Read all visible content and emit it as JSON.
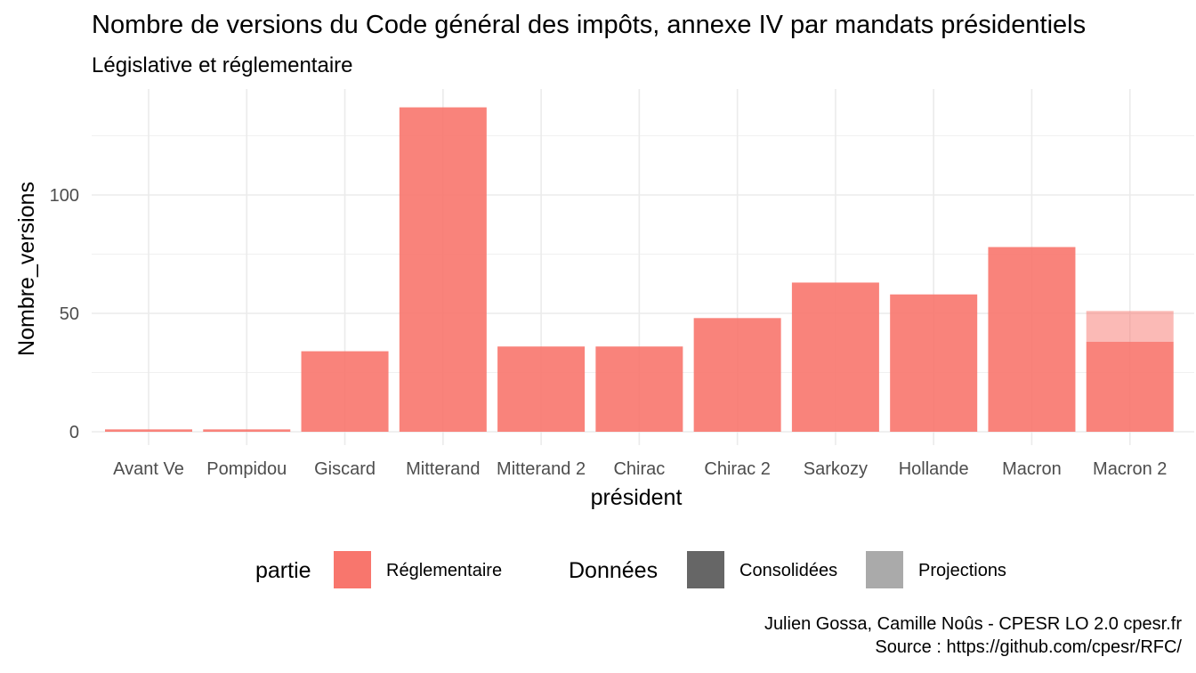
{
  "title": "Nombre de versions du Code général des impôts, annexe IV par mandats présidentiels",
  "subtitle": "Législative et réglementaire",
  "caption": {
    "line1": "Julien Gossa, Camille Noûs - CPESR LO 2.0 cpesr.fr",
    "line2": "Source : https://github.com/cpesr/RFC/"
  },
  "legend": {
    "partie_title": "partie",
    "partie_items": [
      {
        "label": "Réglementaire",
        "color": "#F8766D"
      }
    ],
    "donnees_title": "Données",
    "donnees_items": [
      {
        "label": "Consolidées",
        "color": "#666666"
      },
      {
        "label": "Projections",
        "color": "#AAAAAA"
      }
    ]
  },
  "colors": {
    "bar": "#F8766D",
    "grid": "#ebebeb"
  },
  "chart_data": {
    "type": "bar",
    "xlabel": "président",
    "ylabel": "Nombre_versions",
    "categories": [
      "Avant Ve",
      "Pompidou",
      "Giscard",
      "Mitterand",
      "Mitterand 2",
      "Chirac",
      "Chirac 2",
      "Sarkozy",
      "Hollande",
      "Macron",
      "Macron 2"
    ],
    "series": [
      {
        "name": "Consolidées",
        "values": [
          1,
          1,
          34,
          137,
          36,
          36,
          48,
          63,
          58,
          78,
          38
        ]
      },
      {
        "name": "Projections",
        "values": [
          0,
          0,
          0,
          0,
          0,
          0,
          0,
          0,
          0,
          0,
          13
        ]
      }
    ],
    "yticks": [
      0,
      50,
      100
    ],
    "ylim": [
      -5,
      140
    ],
    "grid": true,
    "legend_position": "bottom"
  }
}
